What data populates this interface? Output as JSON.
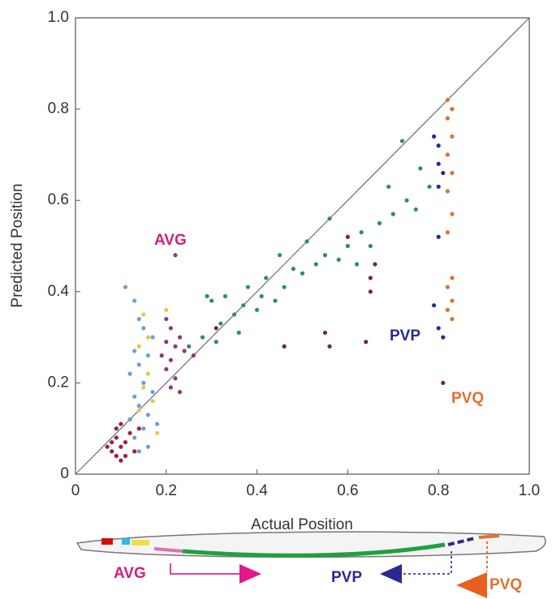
{
  "chart_data": {
    "type": "scatter",
    "xlabel": "Actual Position",
    "ylabel": "Predicted Position",
    "xlim": [
      0,
      1
    ],
    "ylim": [
      0,
      1
    ],
    "xticks": [
      0,
      0.2,
      0.4,
      0.6,
      0.8,
      {
        "value": 1,
        "label": "1.0"
      }
    ],
    "yticks": [
      0,
      0.2,
      0.4,
      0.6,
      0.8,
      {
        "value": 1,
        "label": "1.0"
      }
    ],
    "identity_line": true,
    "annotations": [
      "AVG",
      "PVP",
      "PVQ"
    ],
    "series": [
      {
        "color": "#a0203c",
        "x": [
          0.08,
          0.09,
          0.1,
          0.11,
          0.09,
          0.12,
          0.1,
          0.08,
          0.11,
          0.13,
          0.09,
          0.12,
          0.14,
          0.1,
          0.07
        ],
        "values": [
          0.05,
          0.08,
          0.06,
          0.04,
          0.1,
          0.09,
          0.11,
          0.07,
          0.07,
          0.05,
          0.04,
          0.12,
          0.1,
          0.03,
          0.06
        ]
      },
      {
        "color": "#6f9fd0",
        "x": [
          0.11,
          0.13,
          0.14,
          0.15,
          0.13,
          0.14,
          0.12,
          0.15,
          0.13,
          0.14,
          0.16,
          0.12,
          0.15,
          0.13,
          0.16,
          0.14,
          0.17,
          0.16,
          0.18,
          0.17
        ],
        "values": [
          0.41,
          0.38,
          0.34,
          0.32,
          0.27,
          0.24,
          0.22,
          0.2,
          0.17,
          0.15,
          0.13,
          0.12,
          0.1,
          0.08,
          0.06,
          0.05,
          0.3,
          0.26,
          0.11,
          0.18
        ]
      },
      {
        "color": "#e8c840",
        "x": [
          0.15,
          0.16,
          0.14,
          0.16,
          0.15,
          0.17,
          0.14,
          0.18,
          0.2
        ],
        "values": [
          0.35,
          0.3,
          0.28,
          0.22,
          0.19,
          0.16,
          0.14,
          0.09,
          0.36
        ]
      },
      {
        "color": "#8b3a80",
        "x": [
          0.2,
          0.21,
          0.2,
          0.22,
          0.21,
          0.2,
          0.22,
          0.21,
          0.23,
          0.24,
          0.26,
          0.22,
          0.19,
          0.23
        ],
        "values": [
          0.34,
          0.32,
          0.29,
          0.28,
          0.25,
          0.23,
          0.21,
          0.19,
          0.18,
          0.27,
          0.26,
          0.48,
          0.26,
          0.3
        ]
      },
      {
        "color": "#2e8b70",
        "x": [
          0.25,
          0.28,
          0.3,
          0.32,
          0.33,
          0.35,
          0.37,
          0.38,
          0.4,
          0.41,
          0.42,
          0.44,
          0.45,
          0.46,
          0.48,
          0.5,
          0.51,
          0.53,
          0.55,
          0.56,
          0.58,
          0.6,
          0.62,
          0.63,
          0.65,
          0.67,
          0.69,
          0.7,
          0.72,
          0.73,
          0.75,
          0.76,
          0.78,
          0.31,
          0.36,
          0.29
        ],
        "values": [
          0.28,
          0.3,
          0.38,
          0.33,
          0.39,
          0.35,
          0.37,
          0.41,
          0.36,
          0.39,
          0.43,
          0.38,
          0.48,
          0.41,
          0.45,
          0.44,
          0.51,
          0.46,
          0.48,
          0.56,
          0.47,
          0.5,
          0.46,
          0.53,
          0.5,
          0.55,
          0.63,
          0.57,
          0.73,
          0.6,
          0.58,
          0.67,
          0.63,
          0.29,
          0.31,
          0.39
        ]
      },
      {
        "color": "#6a2a48",
        "x": [
          0.31,
          0.46,
          0.55,
          0.56,
          0.64,
          0.65,
          0.65,
          0.66,
          0.6,
          0.81
        ],
        "values": [
          0.32,
          0.28,
          0.31,
          0.28,
          0.29,
          0.43,
          0.4,
          0.46,
          0.52,
          0.2
        ]
      },
      {
        "color": "#2a2a90",
        "x": [
          0.79,
          0.8,
          0.8,
          0.81,
          0.8,
          0.79,
          0.8,
          0.81,
          0.8
        ],
        "values": [
          0.74,
          0.72,
          0.68,
          0.66,
          0.63,
          0.37,
          0.32,
          0.3,
          0.52
        ]
      },
      {
        "color": "#e07030",
        "x": [
          0.82,
          0.83,
          0.82,
          0.83,
          0.82,
          0.83,
          0.82,
          0.83,
          0.82,
          0.83,
          0.82,
          0.83,
          0.82,
          0.83
        ],
        "values": [
          0.82,
          0.8,
          0.78,
          0.74,
          0.7,
          0.66,
          0.62,
          0.57,
          0.53,
          0.43,
          0.41,
          0.38,
          0.36,
          0.34
        ]
      }
    ]
  },
  "diagram": {
    "labels": [
      "AVG",
      "PVP",
      "PVQ"
    ]
  }
}
